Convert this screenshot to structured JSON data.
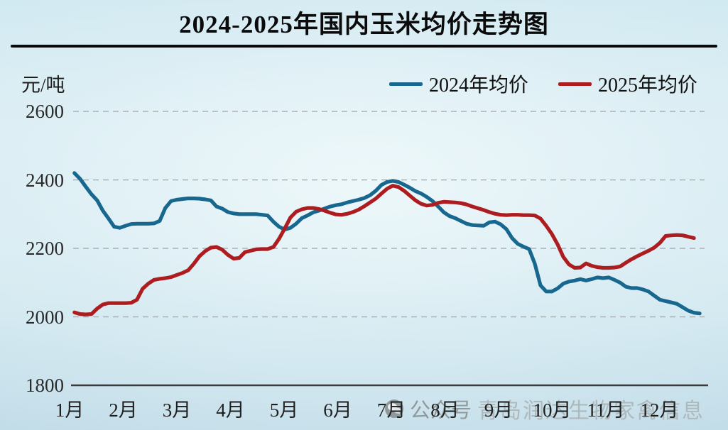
{
  "title": "2024-2025年国内玉米均价走势图",
  "watermark": {
    "icon": "wechat-icon",
    "badge": "公众号",
    "name": "青岛润达生物家禽信息"
  },
  "chart_data": {
    "type": "line",
    "title": "2024-2025年国内玉米均价走势图",
    "xlabel": "",
    "ylabel": "元/吨",
    "grid": "horizontal dashed",
    "grid_color": "#a9b2b6",
    "axis_color": "#3c3c3c",
    "legend_position": "top-right",
    "x_axis": {
      "labels": [
        "1月",
        "2月",
        "3月",
        "4月",
        "5月",
        "6月",
        "7月",
        "8月",
        "9月",
        "10月",
        "11月",
        "12月"
      ]
    },
    "y_axis": {
      "ticks": [
        1800,
        2000,
        2200,
        2400,
        2600
      ],
      "range": [
        1800,
        2600
      ]
    },
    "series": [
      {
        "name": "2024年均价",
        "color": "#17678f",
        "x_start_month": 1.09,
        "x_step_month": 0.106,
        "values": [
          2420,
          2403,
          2380,
          2358,
          2340,
          2310,
          2287,
          2263,
          2260,
          2266,
          2271,
          2272,
          2272,
          2272,
          2273,
          2280,
          2318,
          2338,
          2342,
          2344,
          2346,
          2346,
          2345,
          2343,
          2340,
          2322,
          2316,
          2306,
          2302,
          2300,
          2300,
          2300,
          2300,
          2298,
          2296,
          2278,
          2263,
          2255,
          2260,
          2272,
          2288,
          2296,
          2305,
          2310,
          2316,
          2322,
          2326,
          2329,
          2334,
          2338,
          2342,
          2347,
          2355,
          2368,
          2385,
          2394,
          2397,
          2394,
          2386,
          2377,
          2367,
          2360,
          2350,
          2338,
          2322,
          2305,
          2294,
          2288,
          2280,
          2272,
          2268,
          2267,
          2266,
          2276,
          2278,
          2270,
          2256,
          2230,
          2213,
          2205,
          2198,
          2155,
          2092,
          2074,
          2074,
          2083,
          2097,
          2103,
          2106,
          2110,
          2106,
          2110,
          2115,
          2113,
          2115,
          2108,
          2100,
          2088,
          2084,
          2084,
          2080,
          2074,
          2062,
          2050,
          2046,
          2042,
          2038,
          2028,
          2018,
          2012,
          2010
        ]
      },
      {
        "name": "2025年均价",
        "color": "#ad1d20",
        "x_start_month": 1.09,
        "x_step_month": 0.106,
        "values": [
          2013,
          2008,
          2007,
          2008,
          2024,
          2036,
          2040,
          2040,
          2040,
          2040,
          2041,
          2050,
          2082,
          2097,
          2108,
          2111,
          2113,
          2116,
          2122,
          2128,
          2136,
          2155,
          2177,
          2192,
          2202,
          2204,
          2196,
          2181,
          2170,
          2172,
          2189,
          2193,
          2197,
          2198,
          2198,
          2204,
          2228,
          2258,
          2290,
          2307,
          2314,
          2318,
          2318,
          2315,
          2310,
          2304,
          2299,
          2298,
          2301,
          2306,
          2313,
          2323,
          2334,
          2345,
          2360,
          2374,
          2383,
          2379,
          2368,
          2354,
          2340,
          2330,
          2325,
          2327,
          2333,
          2336,
          2335,
          2334,
          2332,
          2328,
          2322,
          2317,
          2312,
          2306,
          2301,
          2298,
          2297,
          2298,
          2298,
          2297,
          2297,
          2296,
          2287,
          2266,
          2242,
          2212,
          2175,
          2153,
          2143,
          2144,
          2156,
          2149,
          2145,
          2143,
          2143,
          2144,
          2147,
          2158,
          2168,
          2177,
          2185,
          2193,
          2202,
          2216,
          2236,
          2238,
          2239,
          2238,
          2234,
          2230
        ]
      }
    ]
  }
}
